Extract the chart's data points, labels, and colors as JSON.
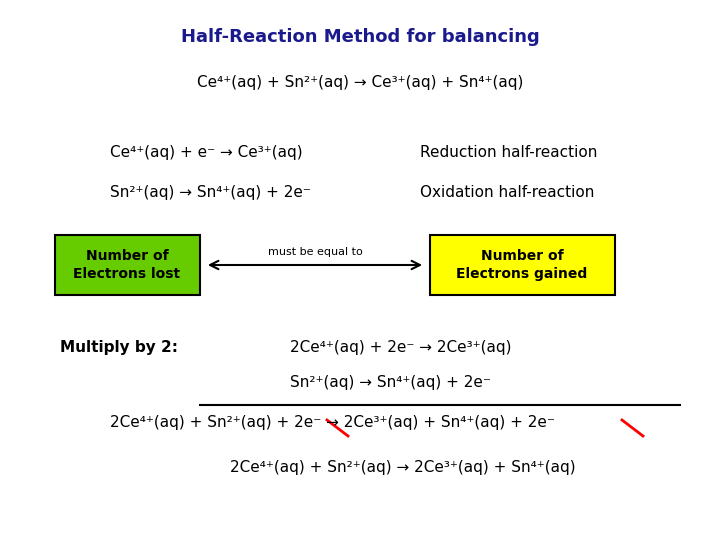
{
  "title": "Half-Reaction Method for balancing",
  "title_color": "#1a1a8c",
  "title_fontsize": 13,
  "body_fontsize": 11,
  "bg_color": "#ffffff",
  "text_color": "#000000",
  "box_left_color": "#66cc00",
  "box_right_color": "#ffff00",
  "arrow_label": "must be equal to",
  "multiply_label": "Multiply by 2:"
}
